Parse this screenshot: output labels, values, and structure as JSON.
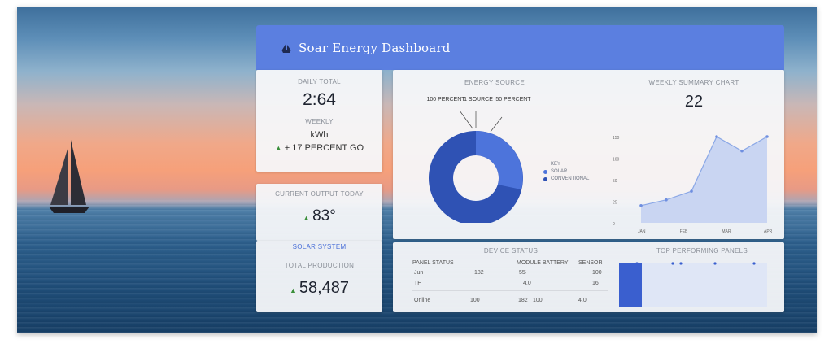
{
  "header": {
    "title": "Soar Energy Dashboard"
  },
  "card1": {
    "label": "DAILY TOTAL",
    "value": "2:64",
    "sublabel": "WEEKLY",
    "subvalue_small": "kWh",
    "trend": "+ 17 PERCENT GO"
  },
  "card2": {
    "label": "CURRENT OUTPUT TODAY",
    "value": "83°",
    "sublabel": "SOLAR SYSTEM"
  },
  "card3": {
    "label": "TOTAL PRODUCTION",
    "value": "58,487"
  },
  "donut": {
    "label": "ENERGY SOURCE",
    "callouts": [
      "100 PERCENT",
      "1 SOURCE",
      "50 PERCENT"
    ],
    "legend": [
      "SOLAR",
      "CONVENTIONAL"
    ],
    "colors": [
      "#4d74db",
      "#2f52b4"
    ]
  },
  "trend": {
    "label": "WEEKLY SUMMARY CHART",
    "value": "22",
    "ticks": [
      "150",
      "100",
      "50",
      "25",
      "0"
    ],
    "xticks": [
      "JAN",
      "FEB",
      "MAR",
      "APR"
    ]
  },
  "chart_data": {
    "type": "area",
    "x": [
      1,
      2,
      3,
      4,
      5,
      6
    ],
    "values": [
      30,
      40,
      55,
      150,
      125,
      160
    ],
    "ylim": [
      0,
      150
    ],
    "color": "#8aa7e6"
  },
  "table": {
    "label": "DEVICE STATUS",
    "headers": [
      "PANEL STATUS",
      "MODULE BATTERY",
      "SENSOR"
    ],
    "rows": [
      [
        "Jun",
        "182",
        "55"
      ],
      [
        "TH",
        "4.0",
        "16"
      ],
      [
        "Online",
        "100",
        "100"
      ]
    ]
  },
  "bars": {
    "label": "TOP PERFORMING PANELS",
    "accent": "#3a5fcf"
  }
}
